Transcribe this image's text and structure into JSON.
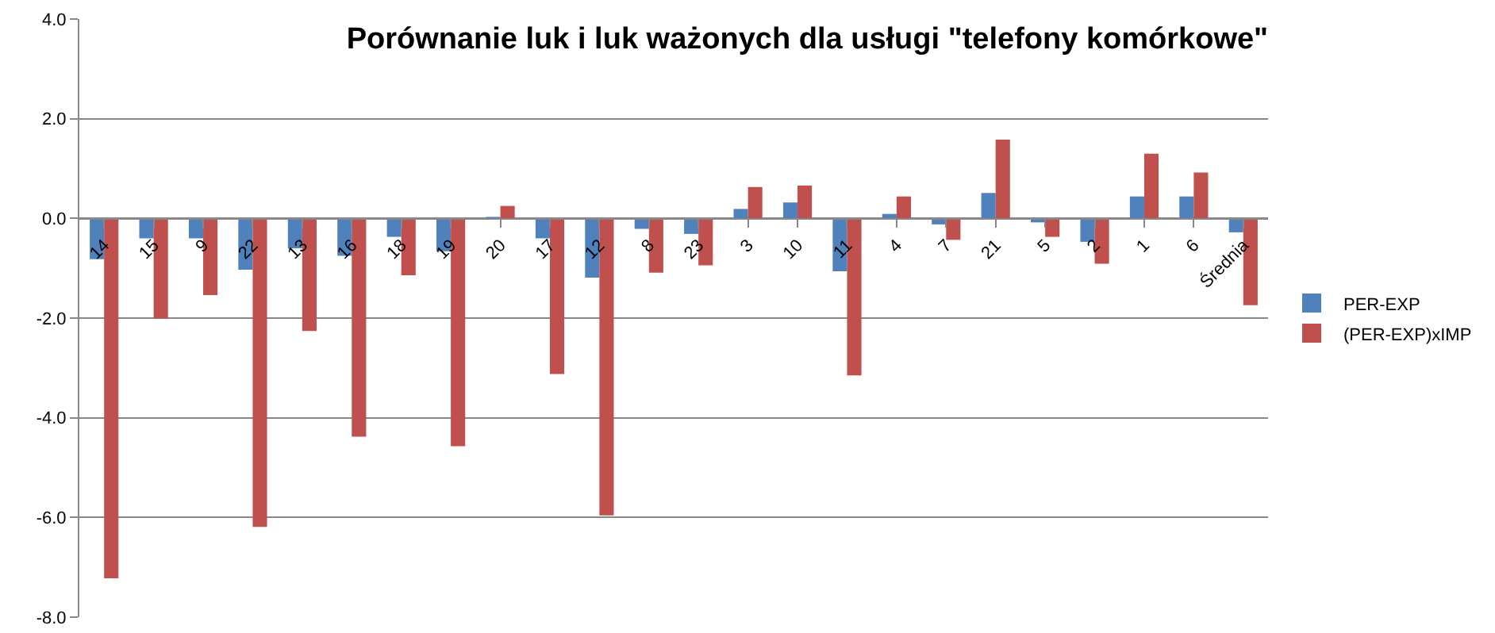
{
  "chart_data": {
    "type": "bar",
    "title": "Porównanie luk i luk ważonych dla usługi \"telefony komórkowe\"",
    "categories": [
      "14",
      "15",
      "9",
      "22",
      "13",
      "16",
      "18",
      "19",
      "20",
      "17",
      "12",
      "8",
      "23",
      "3",
      "10",
      "11",
      "4",
      "7",
      "21",
      "5",
      "2",
      "1",
      "6",
      "Średnia"
    ],
    "series": [
      {
        "name": "PER-EXP",
        "color": "#4f81bd",
        "values": [
          -0.82,
          -0.4,
          -0.4,
          -1.03,
          -0.6,
          -0.75,
          -0.37,
          -0.66,
          0.03,
          -0.4,
          -1.19,
          -0.21,
          -0.31,
          0.19,
          0.32,
          -1.06,
          0.09,
          -0.12,
          0.51,
          -0.08,
          -0.47,
          0.44,
          0.44,
          -0.28
        ]
      },
      {
        "name": "(PER-EXP)xIMP",
        "color": "#c0504d",
        "values": [
          -7.22,
          -2.01,
          -1.54,
          -6.19,
          -2.26,
          -4.38,
          -1.14,
          -4.57,
          0.25,
          -3.12,
          -5.96,
          -1.09,
          -0.94,
          0.63,
          0.66,
          -3.15,
          0.44,
          -0.43,
          1.58,
          -0.37,
          -0.91,
          1.3,
          0.92,
          -1.74
        ]
      }
    ],
    "ylim": [
      -8,
      4
    ],
    "yticks": [
      {
        "value": -8,
        "label": "-8.0"
      },
      {
        "value": -6,
        "label": "-6.0"
      },
      {
        "value": -4,
        "label": "-4.0"
      },
      {
        "value": -2,
        "label": "-2.0"
      },
      {
        "value": 0,
        "label": "0.0"
      },
      {
        "value": 2,
        "label": "2.0"
      },
      {
        "value": 4,
        "label": "4.0"
      }
    ],
    "grid": "y",
    "legend": "right"
  }
}
